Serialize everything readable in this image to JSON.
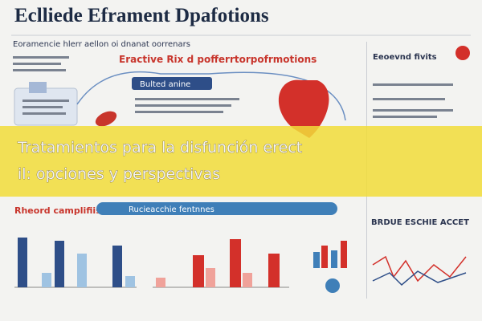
{
  "header": {
    "title": "Eclliede Eframent Dpafotions",
    "subtitle": "Eractive Rix d pofferrtorpofrmotions"
  },
  "sections": {
    "center_top": "Bulted anine",
    "bottom_left": "Rheord camplifiis",
    "bottom_center": "Rucieacchie fentnnes",
    "right_top": "Eeoevnd fivits"
  },
  "banner": {
    "lines": [
      "Tratamientos para la disfunción erect",
      "il: opciones y perspectivas"
    ]
  }
}
